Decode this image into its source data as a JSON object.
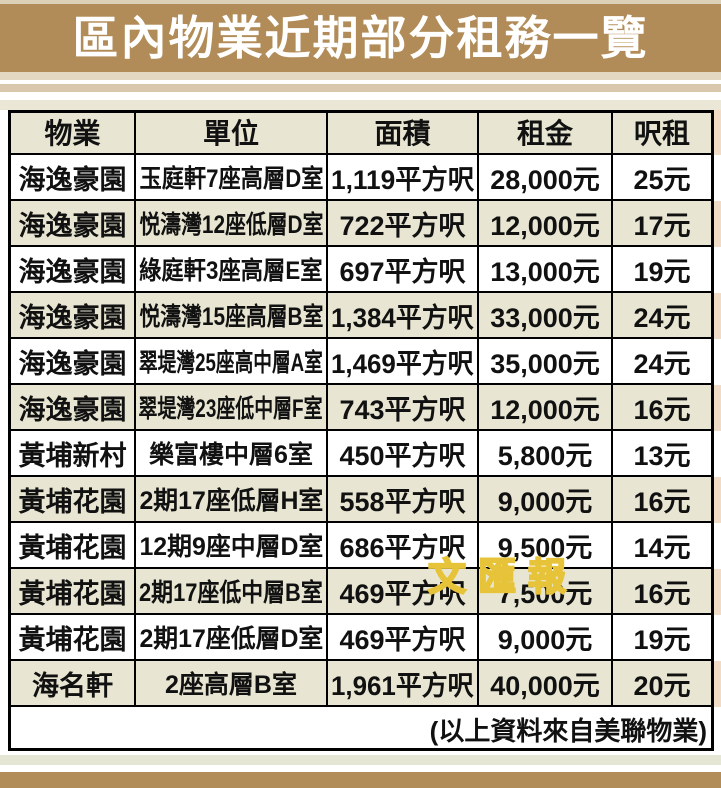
{
  "title": "區內物業近期部分租務一覽",
  "watermark": "文匯報",
  "colors": {
    "title_band": "#b18c58",
    "row_stripe": "#e8e6d2",
    "edge_bleed": "#f0dcc6",
    "bottom_band": "#b18c58",
    "watermark_gold": "#e6c339",
    "table_border": "#000000",
    "title_text": "#ffffff"
  },
  "table": {
    "headers": [
      "物業",
      "單位",
      "面積",
      "租金",
      "呎租"
    ],
    "rows": [
      [
        "海逸豪園",
        "玉庭軒7座高層D室",
        "1,119平方呎",
        "28,000元",
        "25元"
      ],
      [
        "海逸豪園",
        "悦濤灣12座低層D室",
        "722平方呎",
        "12,000元",
        "17元"
      ],
      [
        "海逸豪園",
        "綠庭軒3座高層E室",
        "697平方呎",
        "13,000元",
        "19元"
      ],
      [
        "海逸豪園",
        "悦濤灣15座高層B室",
        "1,384平方呎",
        "33,000元",
        "24元"
      ],
      [
        "海逸豪園",
        "翠堤灣25座高中層A室",
        "1,469平方呎",
        "35,000元",
        "24元"
      ],
      [
        "海逸豪園",
        "翠堤灣23座低中層F室",
        "743平方呎",
        "12,000元",
        "16元"
      ],
      [
        "黃埔新村",
        "樂富樓中層6室",
        "450平方呎",
        "5,800元",
        "13元"
      ],
      [
        "黃埔花園",
        "2期17座低層H室",
        "558平方呎",
        "9,000元",
        "16元"
      ],
      [
        "黃埔花園",
        "12期9座中層D室",
        "686平方呎",
        "9,500元",
        "14元"
      ],
      [
        "黃埔花園",
        "2期17座低中層B室",
        "469平方呎",
        "7,500元",
        "16元"
      ],
      [
        "黃埔花園",
        "2期17座低層D室",
        "469平方呎",
        "9,000元",
        "19元"
      ],
      [
        "海名軒",
        "2座高層B室",
        "1,961平方呎",
        "40,000元",
        "20元"
      ]
    ],
    "footer_note": "(以上資料來自美聯物業)"
  }
}
